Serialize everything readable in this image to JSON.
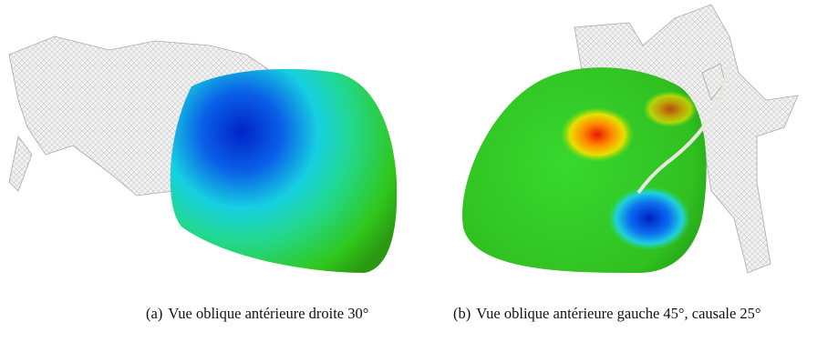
{
  "figure": {
    "subfigures": [
      {
        "label": "(a)",
        "caption": "Vue oblique antérieure droite 30°"
      },
      {
        "label": "(b)",
        "caption": "Vue oblique antérieure gauche 45°, causale 25°"
      }
    ]
  }
}
